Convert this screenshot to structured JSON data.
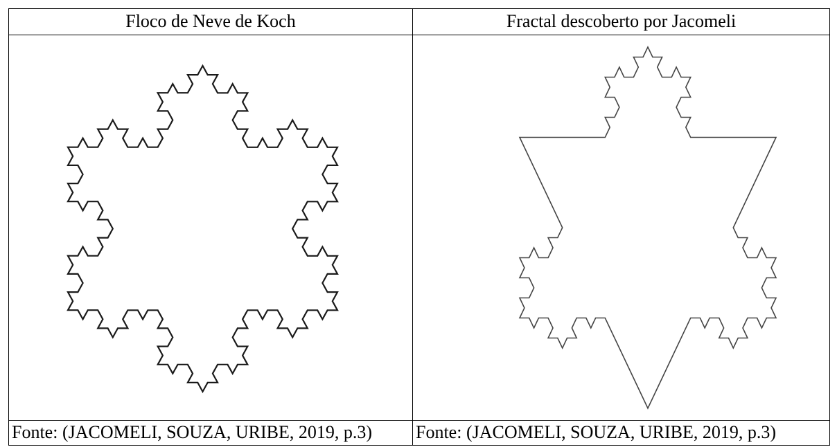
{
  "table": {
    "header": [
      "Floco de Neve de Koch",
      "Fractal descoberto por Jacomeli"
    ],
    "footer": [
      "Fonte: (JACOMELI, SOUZA, URIBE, 2019, p.3)",
      "Fonte: (JACOMELI, SOUZA, URIBE, 2019, p.3)"
    ]
  }
}
